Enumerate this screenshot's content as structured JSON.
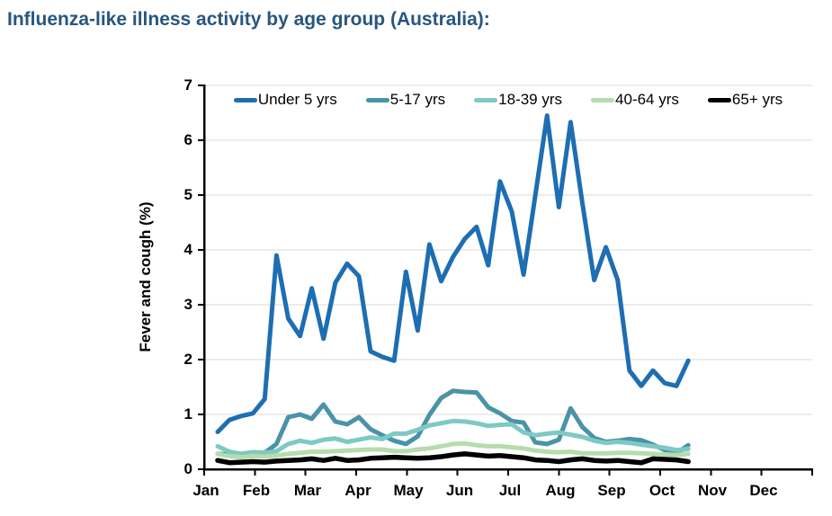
{
  "title": "Influenza-like illness activity by age group (Australia):",
  "colors": {
    "title_text": "#27567f",
    "gridline": "#d9d9d9",
    "axis": "#000000"
  },
  "chart_data": {
    "type": "line",
    "title": "Influenza-like illness activity by age group (Australia):",
    "xlabel": "",
    "ylabel": "Fever and cough (%)",
    "ylim": [
      0,
      7
    ],
    "grid": "horizontal",
    "legend_position": "top",
    "x_note": "weekly observations from early January to late October",
    "y_ticks_top_down": [
      "7",
      "6",
      "5",
      "4",
      "3",
      "2",
      "1",
      "0"
    ],
    "categories": [
      "Jan",
      "Feb",
      "Mar",
      "Apr",
      "May",
      "Jun",
      "Jul",
      "Aug",
      "Sep",
      "Oct",
      "Nov",
      "Dec"
    ],
    "series": [
      {
        "name": "Under 5 yrs",
        "color": "#1d6eb2",
        "values": [
          0.68,
          0.9,
          0.97,
          1.02,
          1.28,
          3.9,
          2.75,
          2.43,
          3.3,
          2.38,
          3.4,
          3.75,
          3.52,
          2.15,
          2.05,
          1.98,
          3.6,
          2.53,
          4.1,
          3.43,
          3.87,
          4.2,
          4.42,
          3.72,
          5.25,
          4.7,
          3.55,
          5.0,
          6.45,
          4.78,
          6.33,
          4.85,
          3.45,
          4.05,
          3.45,
          1.8,
          1.52,
          1.8,
          1.57,
          1.52,
          1.98
        ]
      },
      {
        "name": "5-17 yrs",
        "color": "#4a93a8",
        "values": [
          0.28,
          0.27,
          0.28,
          0.31,
          0.3,
          0.46,
          0.95,
          1.0,
          0.92,
          1.18,
          0.87,
          0.82,
          0.95,
          0.73,
          0.62,
          0.52,
          0.46,
          0.6,
          0.99,
          1.3,
          1.43,
          1.41,
          1.4,
          1.13,
          1.02,
          0.88,
          0.85,
          0.49,
          0.46,
          0.54,
          1.11,
          0.77,
          0.57,
          0.5,
          0.52,
          0.55,
          0.53,
          0.45,
          0.35,
          0.29,
          0.44
        ]
      },
      {
        "name": "18-39 yrs",
        "color": "#7ec9c3",
        "values": [
          0.42,
          0.32,
          0.28,
          0.31,
          0.3,
          0.33,
          0.46,
          0.52,
          0.48,
          0.54,
          0.56,
          0.5,
          0.54,
          0.58,
          0.55,
          0.65,
          0.65,
          0.72,
          0.8,
          0.84,
          0.88,
          0.87,
          0.84,
          0.79,
          0.81,
          0.82,
          0.67,
          0.62,
          0.65,
          0.67,
          0.63,
          0.59,
          0.52,
          0.48,
          0.5,
          0.48,
          0.45,
          0.42,
          0.39,
          0.35,
          0.37
        ]
      },
      {
        "name": "40-64 yrs",
        "color": "#b6dcad",
        "values": [
          0.28,
          0.24,
          0.22,
          0.24,
          0.23,
          0.25,
          0.28,
          0.3,
          0.32,
          0.32,
          0.33,
          0.34,
          0.35,
          0.36,
          0.36,
          0.33,
          0.33,
          0.36,
          0.38,
          0.42,
          0.46,
          0.47,
          0.44,
          0.42,
          0.42,
          0.4,
          0.38,
          0.34,
          0.32,
          0.31,
          0.32,
          0.29,
          0.29,
          0.29,
          0.3,
          0.3,
          0.29,
          0.28,
          0.27,
          0.26,
          0.28
        ]
      },
      {
        "name": "65+ yrs",
        "color": "#000000",
        "values": [
          0.16,
          0.12,
          0.13,
          0.14,
          0.13,
          0.15,
          0.16,
          0.17,
          0.19,
          0.16,
          0.2,
          0.16,
          0.17,
          0.2,
          0.21,
          0.22,
          0.21,
          0.2,
          0.21,
          0.23,
          0.26,
          0.28,
          0.26,
          0.24,
          0.25,
          0.23,
          0.21,
          0.17,
          0.16,
          0.14,
          0.17,
          0.19,
          0.16,
          0.15,
          0.16,
          0.14,
          0.12,
          0.19,
          0.18,
          0.17,
          0.14
        ]
      }
    ]
  }
}
